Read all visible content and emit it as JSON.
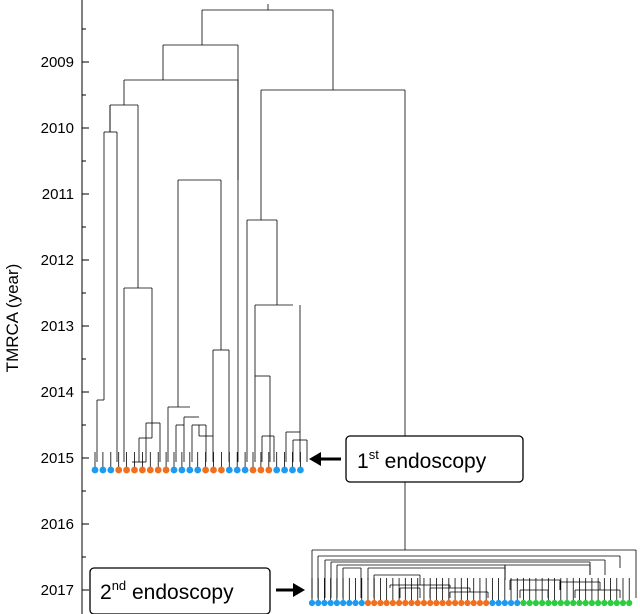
{
  "axis": {
    "title": "TMRCA (year)",
    "ticks": [
      "2009",
      "2010",
      "2011",
      "2012",
      "2013",
      "2014",
      "2015",
      "2016",
      "2017"
    ]
  },
  "callouts": {
    "first": {
      "base": "1",
      "sup": "st",
      "rest": " endoscopy"
    },
    "second": {
      "base": "2",
      "sup": "nd",
      "rest": " endoscopy"
    }
  },
  "colors": {
    "blue": "#1e9bf0",
    "orange": "#f07020",
    "green": "#2ecc40",
    "line": "#000000"
  },
  "samples": {
    "first_endoscopy": [
      "blue",
      "blue",
      "blue",
      "orange",
      "orange",
      "orange",
      "orange",
      "orange",
      "orange",
      "orange",
      "blue",
      "blue",
      "blue",
      "blue",
      "orange",
      "orange",
      "orange",
      "blue",
      "blue",
      "blue",
      "orange",
      "orange",
      "orange",
      "blue",
      "blue",
      "blue",
      "blue"
    ],
    "second_endoscopy": [
      "blue",
      "blue",
      "blue",
      "blue",
      "blue",
      "blue",
      "blue",
      "blue",
      "blue",
      "orange",
      "orange",
      "orange",
      "orange",
      "orange",
      "orange",
      "orange",
      "orange",
      "orange",
      "orange",
      "orange",
      "orange",
      "orange",
      "orange",
      "orange",
      "orange",
      "orange",
      "orange",
      "orange",
      "orange",
      "blue",
      "blue",
      "blue",
      "blue",
      "blue",
      "green",
      "green",
      "green",
      "green",
      "green",
      "green",
      "green",
      "green",
      "green",
      "green",
      "green",
      "green",
      "green",
      "green",
      "green",
      "green",
      "green",
      "green"
    ]
  }
}
